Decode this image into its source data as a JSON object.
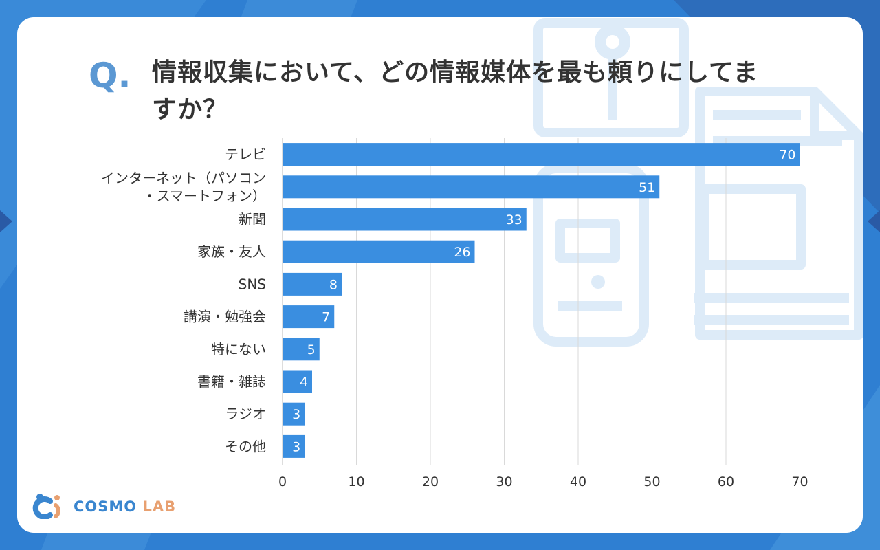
{
  "title": {
    "q_mark": "Q.",
    "text": "情報収集において、どの情報媒体を最も頼りにしてますか？"
  },
  "brand": {
    "part1": "COSMO",
    "part2": "LAB"
  },
  "colors": {
    "bar": "#3a8ee0",
    "bar_label": "#ffffff",
    "accent": "#5b98d3",
    "grid": "#d9d9d9",
    "text": "#333333"
  },
  "chart_data": {
    "type": "bar",
    "orientation": "horizontal",
    "title": "情報収集において、どの情報媒体を最も頼りにしてますか？",
    "categories": [
      [
        "テレビ"
      ],
      [
        "インターネット（パソコン",
        "・スマートフォン）"
      ],
      [
        "新聞"
      ],
      [
        "家族・友人"
      ],
      [
        "SNS"
      ],
      [
        "講演・勉強会"
      ],
      [
        "特にない"
      ],
      [
        "書籍・雑誌"
      ],
      [
        "ラジオ"
      ],
      [
        "その他"
      ]
    ],
    "values": [
      70,
      51,
      33,
      26,
      8,
      7,
      5,
      4,
      3,
      3
    ],
    "xlim": [
      0,
      70
    ],
    "xticks": [
      "0",
      "10",
      "20",
      "30",
      "40",
      "50",
      "60",
      "70"
    ],
    "grid": true,
    "data_labels": true
  }
}
